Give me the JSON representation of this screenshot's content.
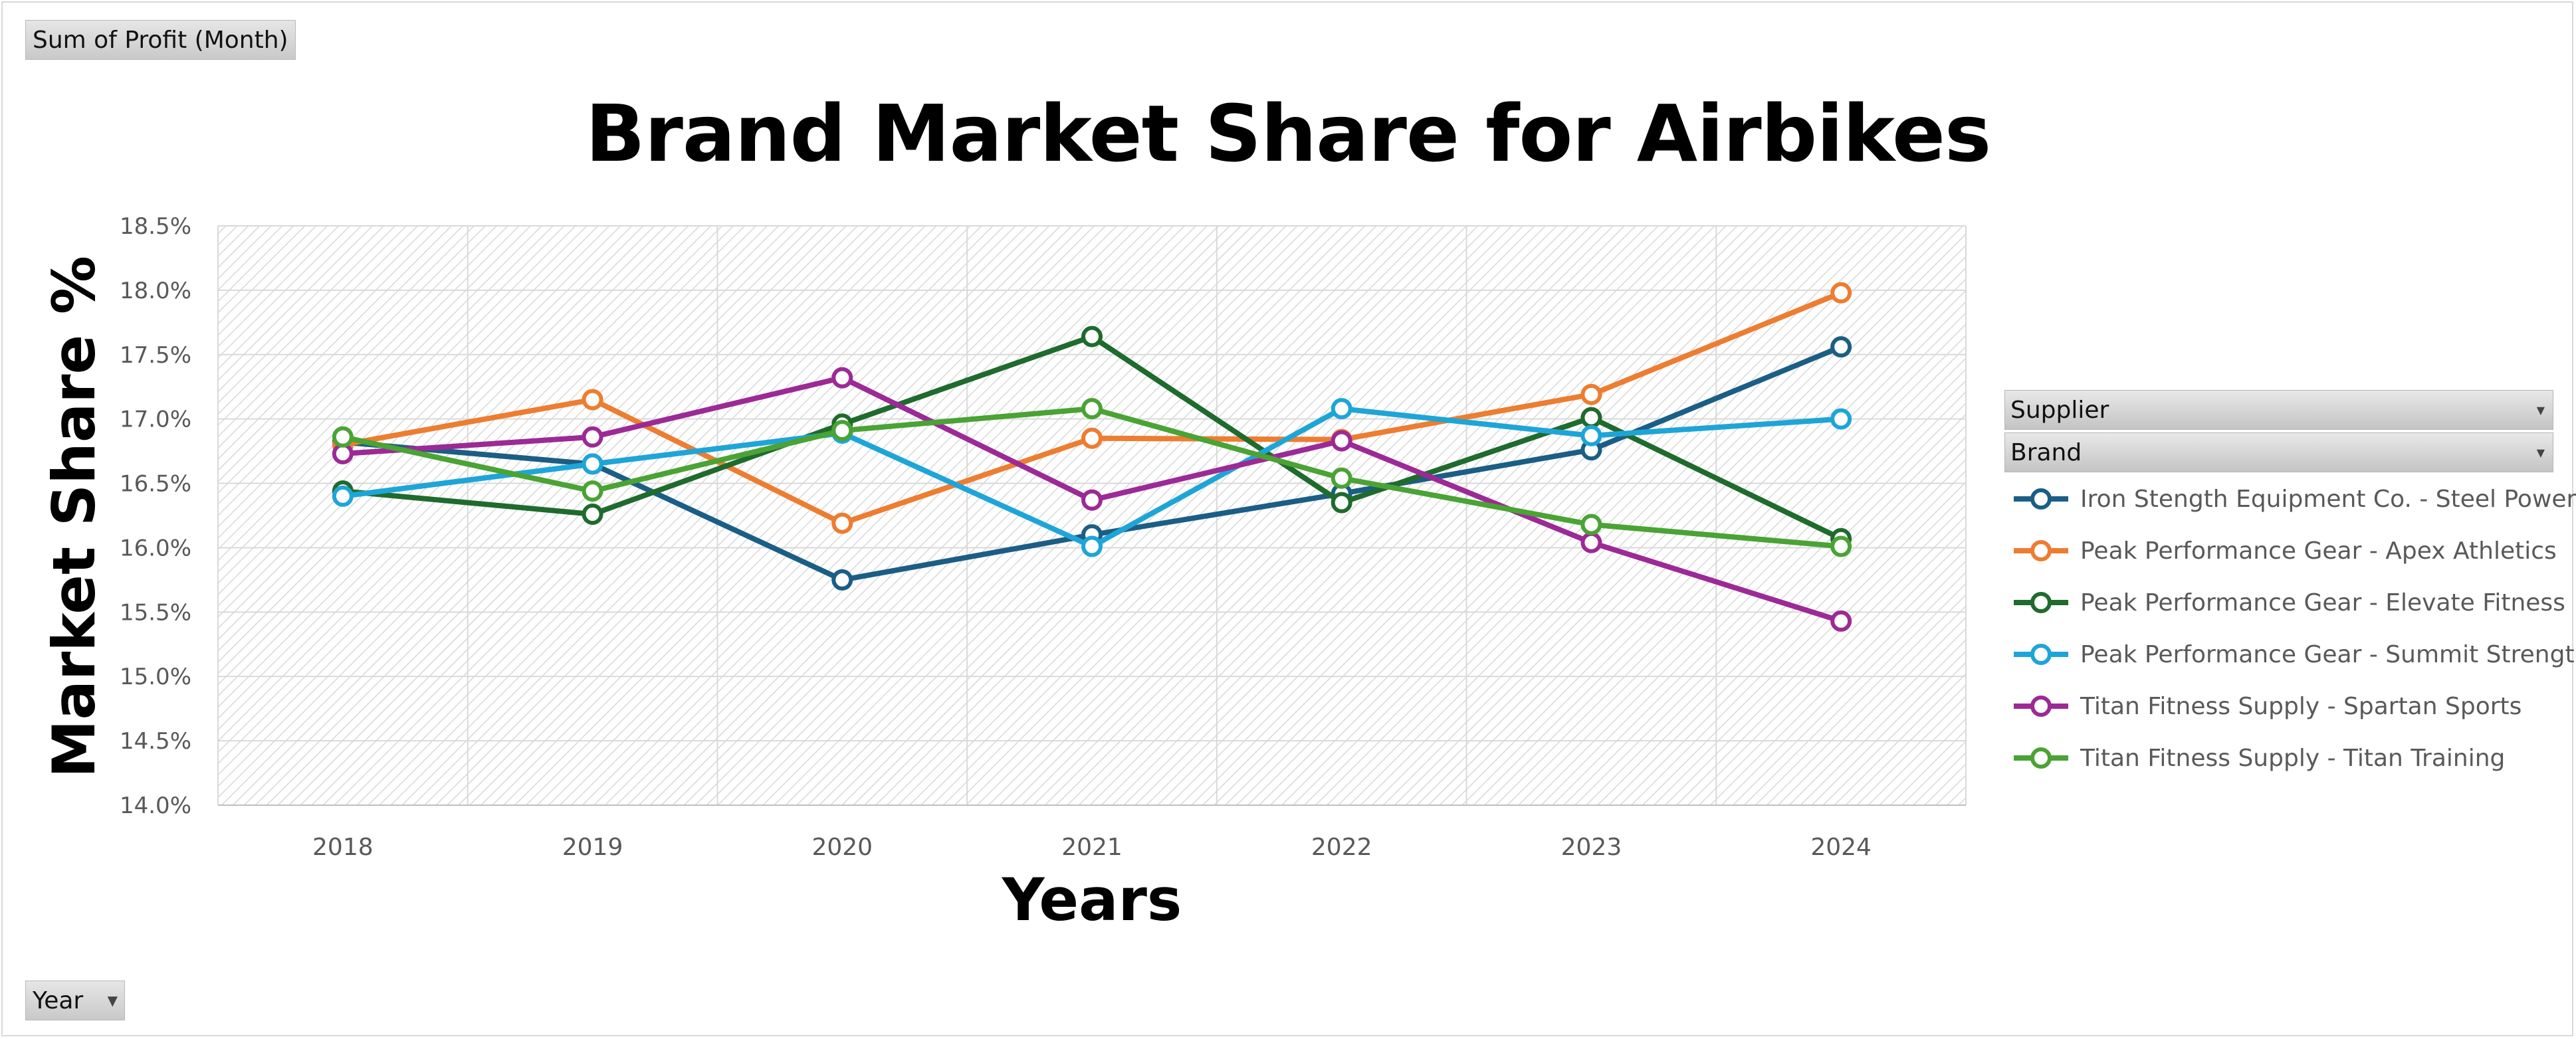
{
  "filters": {
    "profit_label": "Sum of Profit (Month)",
    "year_label": "Year"
  },
  "legend_header": {
    "supplier_label": "Supplier",
    "brand_label": "Brand"
  },
  "icons": {
    "dropdown": "chevron-down-icon"
  },
  "chart_data": {
    "type": "line",
    "title": "Brand Market Share for Airbikes",
    "xlabel": "Years",
    "ylabel": "Market Share %",
    "x": [
      "2018",
      "2019",
      "2020",
      "2021",
      "2022",
      "2023",
      "2024"
    ],
    "ylim": [
      14.0,
      18.5
    ],
    "ytick_step": 0.5,
    "y_tick_labels": [
      "14.0%",
      "14.5%",
      "15.0%",
      "15.5%",
      "16.0%",
      "16.5%",
      "17.0%",
      "17.5%",
      "18.0%",
      "18.5%"
    ],
    "grid": true,
    "plot_background": "diagonal-hatch",
    "legend_position": "right",
    "series": [
      {
        "name": "Iron Stength Equipment Co. - Steel Power",
        "color": "#1b5e85",
        "values": [
          16.82,
          16.65,
          15.75,
          16.1,
          16.42,
          16.76,
          17.56
        ]
      },
      {
        "name": "Peak Performance Gear - Apex Athletics",
        "color": "#ed7d31",
        "values": [
          16.8,
          17.15,
          16.19,
          16.85,
          16.84,
          17.19,
          17.98
        ]
      },
      {
        "name": "Peak Performance Gear - Elevate Fitness",
        "color": "#1f6b2e",
        "values": [
          16.44,
          16.26,
          16.96,
          17.64,
          16.35,
          17.01,
          16.07
        ]
      },
      {
        "name": "Peak Performance Gear - Summit Strength",
        "color": "#1ea5d8",
        "values": [
          16.4,
          16.65,
          16.89,
          16.01,
          17.08,
          16.87,
          17.0
        ]
      },
      {
        "name": "Titan Fitness Supply - Spartan Sports",
        "color": "#9c2a96",
        "values": [
          16.73,
          16.86,
          17.32,
          16.37,
          16.83,
          16.04,
          15.43
        ]
      },
      {
        "name": "Titan Fitness Supply - Titan Training",
        "color": "#4aa334",
        "values": [
          16.86,
          16.44,
          16.91,
          17.08,
          16.54,
          16.18,
          16.01
        ]
      }
    ]
  }
}
